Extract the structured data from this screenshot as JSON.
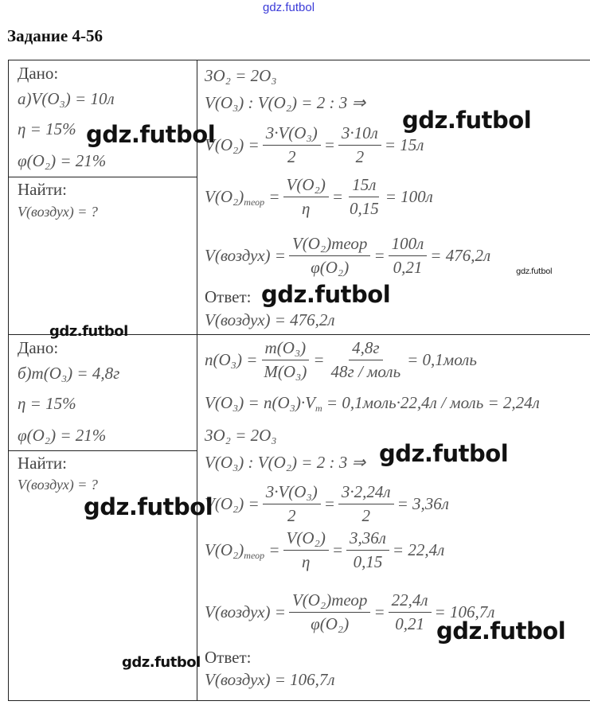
{
  "watermark": "gdz.futbol",
  "title": "Задание 4-56",
  "part_a": {
    "given_label": "Дано:",
    "given": [
      [
        {
          "t": "а)V(O₃) = 10л"
        }
      ],
      [
        {
          "t": "η = 15%"
        }
      ],
      [
        {
          "t": "φ(O₂) = 21%"
        }
      ]
    ],
    "find_label": "Найти:",
    "find": [
      [
        {
          "t": "V(воздух) = ?"
        }
      ]
    ],
    "solution": [
      [
        {
          "t": "3O₂ = 2O₃"
        }
      ],
      [
        {
          "t": "V(O₃) : V(O₂) = 2 : 3 ⇒"
        }
      ],
      [
        {
          "t": "V(O₂) ="
        },
        {
          "num": "3·V(O₃)",
          "den": "2"
        },
        {
          "t": "="
        },
        {
          "num": "3·10л",
          "den": "2"
        },
        {
          "t": "= 15л"
        }
      ],
      [
        {
          "t": "V(O₂)"
        },
        {
          "sub": "теор"
        },
        {
          "t": " ="
        },
        {
          "num": "V(O₂)",
          "den": "η"
        },
        {
          "t": "="
        },
        {
          "num": "15л",
          "den": "0,15"
        },
        {
          "t": "= 100л"
        }
      ],
      [
        {
          "t": "V(воздух) ="
        },
        {
          "num": "V(O₂)теор",
          "den": "φ(O₂)"
        },
        {
          "t": "="
        },
        {
          "num": "100л",
          "den": "0,21"
        },
        {
          "t": "= 476,2л"
        }
      ]
    ],
    "answer_label": "Ответ:",
    "answer": [
      {
        "t": "V(воздух) = 476,2л"
      }
    ]
  },
  "part_b": {
    "given_label": "Дано:",
    "given": [
      [
        {
          "t": "б)m(O₃) = 4,8г"
        }
      ],
      [
        {
          "t": "η = 15%"
        }
      ],
      [
        {
          "t": "φ(O₂) = 21%"
        }
      ]
    ],
    "find_label": "Найти:",
    "find": [
      [
        {
          "t": "V(воздух) = ?"
        }
      ]
    ],
    "solution": [
      [
        {
          "t": "n(O₃) ="
        },
        {
          "num": "m(O₃)",
          "den": "M(O₃)"
        },
        {
          "t": "="
        },
        {
          "num": "4,8г",
          "den": "48г / моль"
        },
        {
          "t": "= 0,1моль"
        }
      ],
      [
        {
          "t": "V(O₃) = n(O₃)·V"
        },
        {
          "sub": "m"
        },
        {
          "t": " = 0,1моль·22,4л / моль = 2,24л"
        }
      ],
      [
        {
          "t": "3O₂ = 2O₃"
        }
      ],
      [
        {
          "t": "V(O₃) : V(O₂) = 2 : 3 ⇒"
        }
      ],
      [
        {
          "t": "V(O₂) ="
        },
        {
          "num": "3·V(O₃)",
          "den": "2"
        },
        {
          "t": "="
        },
        {
          "num": "3·2,24л",
          "den": "2"
        },
        {
          "t": "= 3,36л"
        }
      ],
      [
        {
          "t": "V(O₂)"
        },
        {
          "sub": "теор"
        },
        {
          "t": " ="
        },
        {
          "num": "V(O₂)",
          "den": "η"
        },
        {
          "t": "="
        },
        {
          "num": "3,36л",
          "den": "0,15"
        },
        {
          "t": "= 22,4л"
        }
      ],
      [
        {
          "t": "V(воздух) ="
        },
        {
          "num": "V(O₂)теор",
          "den": "φ(O₂)"
        },
        {
          "t": "="
        },
        {
          "num": "22,4л",
          "den": "0,21"
        },
        {
          "t": "= 106,7л"
        }
      ]
    ],
    "answer_label": "Ответ:",
    "answer": [
      {
        "t": "V(воздух) = 106,7л"
      }
    ]
  }
}
